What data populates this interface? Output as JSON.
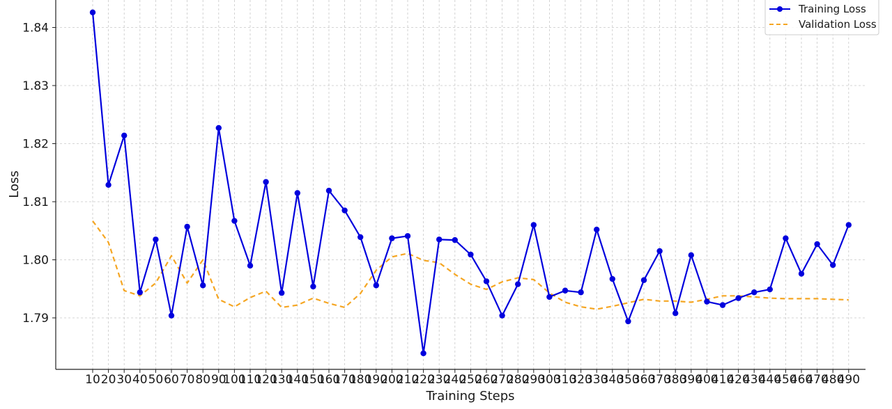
{
  "chart_data": {
    "type": "line",
    "title": "",
    "xlabel": "Training Steps",
    "ylabel": "Loss",
    "grid": true,
    "legend_position": "top-right",
    "x": [
      10,
      20,
      30,
      40,
      50,
      60,
      70,
      80,
      90,
      100,
      110,
      120,
      130,
      140,
      150,
      160,
      170,
      180,
      190,
      200,
      210,
      220,
      230,
      240,
      250,
      260,
      270,
      280,
      290,
      300,
      310,
      320,
      330,
      340,
      350,
      360,
      370,
      380,
      390,
      400,
      410,
      420,
      430,
      440,
      450,
      460,
      470,
      480,
      490
    ],
    "x_tick_labels": [
      "10",
      "20",
      "30",
      "40",
      "50",
      "60",
      "70",
      "80",
      "90",
      "100",
      "110",
      "120",
      "130",
      "140",
      "150",
      "160",
      "170",
      "180",
      "190",
      "200",
      "210",
      "220",
      "230",
      "240",
      "250",
      "260",
      "270",
      "280",
      "290",
      "300",
      "310",
      "320",
      "330",
      "340",
      "350",
      "360",
      "370",
      "380",
      "390",
      "400",
      "410",
      "420",
      "430",
      "440",
      "450",
      "460",
      "470",
      "480",
      "490"
    ],
    "y_ticks": [
      1.79,
      1.8,
      1.81,
      1.82,
      1.83,
      1.84
    ],
    "y_tick_labels": [
      "1.79",
      "1.80",
      "1.81",
      "1.82",
      "1.83",
      "1.84"
    ],
    "ylim": [
      1.7835,
      1.8445
    ],
    "series": [
      {
        "name": "Training Loss",
        "color": "#0000dd",
        "style": "solid",
        "marker": "circle",
        "values": [
          1.8426,
          1.8129,
          1.8214,
          1.7944,
          1.8035,
          1.7904,
          1.8057,
          1.7956,
          1.8227,
          1.8067,
          1.799,
          1.8134,
          1.7943,
          1.8115,
          1.7954,
          1.8119,
          1.8085,
          1.8039,
          1.7956,
          1.8037,
          1.8041,
          1.7839,
          1.8035,
          1.8034,
          1.8009,
          1.7963,
          1.7904,
          1.7958,
          1.806,
          1.7936,
          1.7947,
          1.7944,
          1.8052,
          1.7967,
          1.7894,
          1.7965,
          1.8015,
          1.7908,
          1.8008,
          1.7928,
          1.7922,
          1.7934,
          1.7944,
          1.7949,
          1.8037,
          1.7976,
          1.8027,
          1.7991,
          1.806
        ]
      },
      {
        "name": "Validation Loss",
        "color": "#f5a623",
        "style": "dashed",
        "marker": "none",
        "values": [
          1.8067,
          1.803,
          1.7947,
          1.7938,
          1.796,
          1.8007,
          1.796,
          1.8,
          1.7932,
          1.7919,
          1.7935,
          1.7946,
          1.7918,
          1.7922,
          1.7934,
          1.7925,
          1.7918,
          1.7942,
          1.7982,
          1.8005,
          1.8011,
          1.7999,
          1.7995,
          1.7975,
          1.7958,
          1.7949,
          1.7962,
          1.7969,
          1.7966,
          1.7943,
          1.7927,
          1.7919,
          1.7915,
          1.792,
          1.7926,
          1.7932,
          1.7929,
          1.7929,
          1.7927,
          1.7932,
          1.7938,
          1.7938,
          1.7936,
          1.7934,
          1.7933,
          1.7933,
          1.7933,
          1.7932,
          1.7931
        ]
      }
    ]
  }
}
